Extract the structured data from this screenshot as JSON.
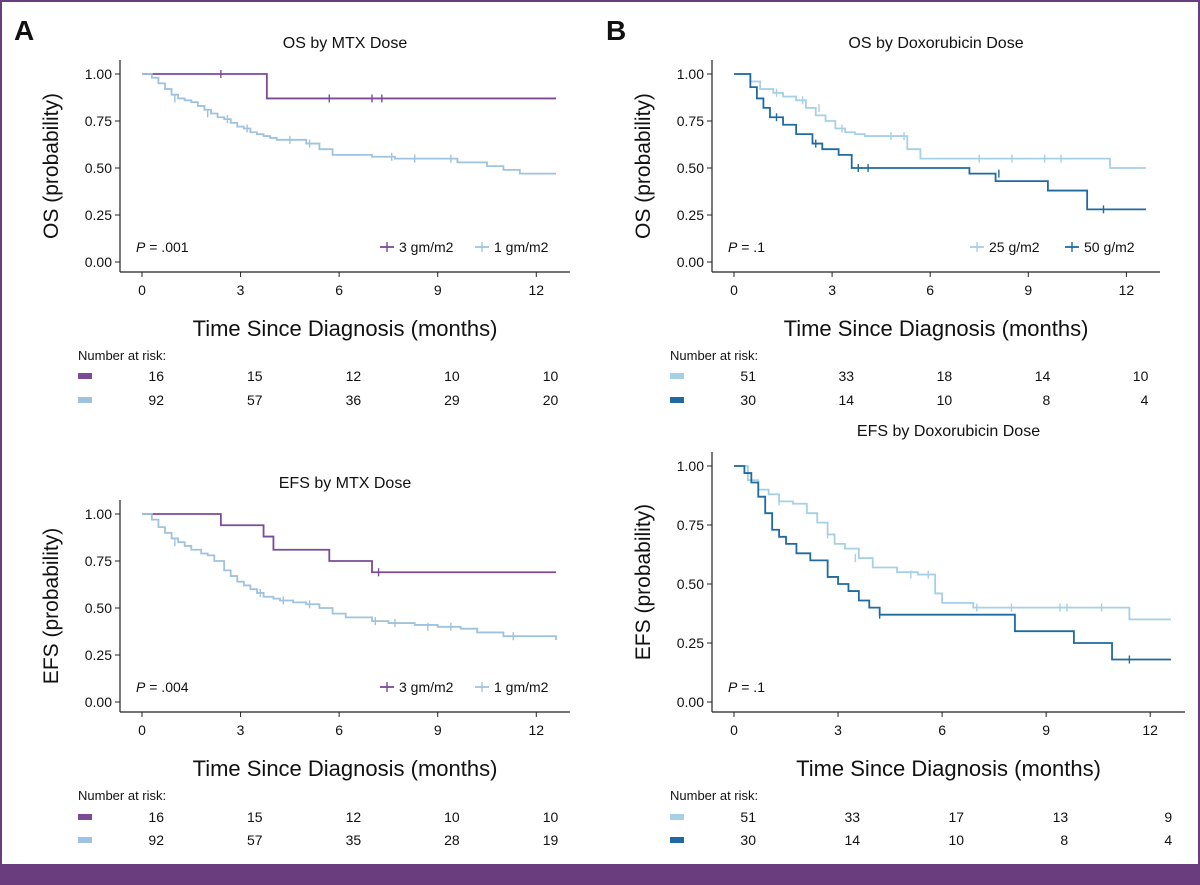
{
  "figure": {
    "panel_labels": [
      "A",
      "B"
    ],
    "colors": {
      "mtx_3gm": "#7b4a98",
      "mtx_1gm": "#9fc3de",
      "dox_25": "#a6d0e6",
      "dox_50": "#1f6aa0",
      "frame": "#6a3d7e"
    }
  },
  "chart_data": [
    {
      "id": "os-mtx",
      "type": "line",
      "step": "post",
      "title": "OS by MTX Dose",
      "xlabel": "Time Since Diagnosis (months)",
      "ylabel": "OS (probability)",
      "xlim": [
        0,
        12.6
      ],
      "ylim": [
        0,
        1
      ],
      "xticks": [
        "0",
        "3",
        "6",
        "9",
        "12"
      ],
      "yticks": [
        "0.00",
        "0.25",
        "0.50",
        "0.75",
        "1.00"
      ],
      "pvalue": ".001",
      "legend_position": "bottom-right",
      "series": [
        {
          "name": "3 gm/m2",
          "color": "#7b4a98",
          "x": [
            0,
            3.8,
            12.6
          ],
          "y": [
            1.0,
            0.87,
            0.87
          ],
          "censor_x": [
            2.4,
            5.7,
            7.0,
            7.3
          ],
          "censor_y": [
            1.0,
            0.87,
            0.87,
            0.87
          ]
        },
        {
          "name": "1 gm/m2",
          "color": "#9fc3de",
          "x": [
            0,
            0.3,
            0.5,
            0.7,
            0.9,
            1.1,
            1.3,
            1.5,
            1.7,
            1.9,
            2.1,
            2.3,
            2.5,
            2.7,
            2.9,
            3.1,
            3.3,
            3.5,
            3.7,
            3.9,
            4.1,
            4.4,
            5.0,
            5.4,
            5.8,
            7.0,
            7.7,
            8.6,
            9.6,
            10.5,
            11.0,
            11.5,
            12.6
          ],
          "y": [
            1.0,
            0.98,
            0.95,
            0.92,
            0.89,
            0.87,
            0.86,
            0.85,
            0.83,
            0.81,
            0.79,
            0.77,
            0.76,
            0.74,
            0.72,
            0.71,
            0.69,
            0.68,
            0.67,
            0.66,
            0.65,
            0.65,
            0.63,
            0.6,
            0.57,
            0.56,
            0.55,
            0.55,
            0.53,
            0.51,
            0.49,
            0.47,
            0.47
          ],
          "censor_x": [
            1.0,
            2.0,
            2.6,
            3.2,
            4.5,
            5.1,
            7.6,
            8.3,
            9.4
          ],
          "censor_y": [
            0.87,
            0.79,
            0.76,
            0.71,
            0.65,
            0.63,
            0.56,
            0.55,
            0.55
          ]
        }
      ],
      "risk_table": {
        "label": "Number at risk:",
        "rows": [
          {
            "color": "#7b4a98",
            "values": [
              "16",
              "15",
              "12",
              "10",
              "10"
            ]
          },
          {
            "color": "#9fc3de",
            "values": [
              "92",
              "57",
              "36",
              "29",
              "20"
            ]
          }
        ]
      }
    },
    {
      "id": "efs-mtx",
      "type": "line",
      "step": "post",
      "title": "EFS by MTX Dose",
      "xlabel": "Time Since Diagnosis (months)",
      "ylabel": "EFS (probability)",
      "xlim": [
        0,
        12.6
      ],
      "ylim": [
        0,
        1
      ],
      "xticks": [
        "0",
        "3",
        "6",
        "9",
        "12"
      ],
      "yticks": [
        "0.00",
        "0.25",
        "0.50",
        "0.75",
        "1.00"
      ],
      "pvalue": ".004",
      "legend_position": "bottom-right",
      "series": [
        {
          "name": "3 gm/m2",
          "color": "#7b4a98",
          "x": [
            0,
            2.4,
            3.7,
            4.0,
            5.7,
            7.0,
            12.6
          ],
          "y": [
            1.0,
            0.94,
            0.88,
            0.81,
            0.75,
            0.69,
            0.69
          ],
          "censor_x": [
            7.2
          ],
          "censor_y": [
            0.69
          ]
        },
        {
          "name": "1 gm/m2",
          "color": "#9fc3de",
          "x": [
            0,
            0.3,
            0.5,
            0.7,
            0.9,
            1.1,
            1.3,
            1.5,
            1.8,
            2.0,
            2.2,
            2.5,
            2.7,
            2.9,
            3.1,
            3.3,
            3.5,
            3.7,
            4.0,
            4.2,
            4.6,
            5.0,
            5.4,
            5.8,
            6.2,
            7.0,
            7.5,
            8.3,
            9.0,
            9.7,
            10.2,
            11.0,
            12.6
          ],
          "y": [
            1.0,
            0.97,
            0.93,
            0.9,
            0.87,
            0.85,
            0.83,
            0.81,
            0.79,
            0.78,
            0.75,
            0.7,
            0.67,
            0.64,
            0.62,
            0.6,
            0.58,
            0.56,
            0.55,
            0.54,
            0.53,
            0.52,
            0.5,
            0.47,
            0.45,
            0.43,
            0.42,
            0.41,
            0.4,
            0.39,
            0.37,
            0.35,
            0.33
          ],
          "censor_x": [
            1.0,
            3.6,
            4.3,
            5.1,
            7.1,
            7.7,
            8.7,
            9.4,
            11.3
          ],
          "censor_y": [
            0.85,
            0.58,
            0.54,
            0.52,
            0.43,
            0.42,
            0.4,
            0.4,
            0.35
          ]
        }
      ],
      "risk_table": {
        "label": "Number at risk:",
        "rows": [
          {
            "color": "#7b4a98",
            "values": [
              "16",
              "15",
              "12",
              "10",
              "10"
            ]
          },
          {
            "color": "#9fc3de",
            "values": [
              "92",
              "57",
              "35",
              "28",
              "19"
            ]
          }
        ]
      }
    },
    {
      "id": "os-dox",
      "type": "line",
      "step": "post",
      "title": "OS by Doxorubicin Dose",
      "xlabel": "Time Since Diagnosis (months)",
      "ylabel": "OS (probability)",
      "xlim": [
        0,
        12.6
      ],
      "ylim": [
        0,
        1
      ],
      "xticks": [
        "0",
        "3",
        "6",
        "9",
        "12"
      ],
      "yticks": [
        "0.00",
        "0.25",
        "0.50",
        "0.75",
        "1.00"
      ],
      "pvalue": ".1",
      "legend_position": "bottom-right",
      "series": [
        {
          "name": "25 g/m2",
          "color": "#a6d0e6",
          "x": [
            0,
            0.5,
            0.8,
            1.2,
            1.5,
            1.9,
            2.2,
            2.5,
            2.8,
            3.1,
            3.4,
            3.7,
            4.0,
            5.3,
            5.7,
            6.0,
            11.5,
            12.6
          ],
          "y": [
            1.0,
            0.96,
            0.92,
            0.9,
            0.88,
            0.86,
            0.82,
            0.78,
            0.75,
            0.71,
            0.69,
            0.68,
            0.67,
            0.6,
            0.55,
            0.55,
            0.5,
            0.5
          ],
          "censor_x": [
            1.3,
            2.1,
            2.6,
            3.3,
            4.8,
            5.2,
            7.5,
            8.5,
            9.5,
            10.0
          ],
          "censor_y": [
            0.9,
            0.86,
            0.82,
            0.71,
            0.67,
            0.67,
            0.55,
            0.55,
            0.55,
            0.55
          ]
        },
        {
          "name": "50 g/m2",
          "color": "#1f6aa0",
          "x": [
            0,
            0.5,
            0.7,
            0.9,
            1.1,
            1.5,
            1.9,
            2.4,
            2.7,
            3.2,
            3.6,
            7.2,
            8.0,
            9.6,
            10.8,
            12.6
          ],
          "y": [
            1.0,
            0.93,
            0.87,
            0.82,
            0.77,
            0.73,
            0.68,
            0.63,
            0.6,
            0.57,
            0.5,
            0.47,
            0.43,
            0.38,
            0.28,
            0.28
          ],
          "censor_x": [
            1.3,
            2.5,
            3.8,
            4.1,
            8.1,
            11.3
          ],
          "censor_y": [
            0.77,
            0.63,
            0.5,
            0.5,
            0.47,
            0.28
          ]
        }
      ],
      "risk_table": {
        "label": "Number at risk:",
        "rows": [
          {
            "color": "#a6d0e6",
            "values": [
              "51",
              "33",
              "18",
              "14",
              "10"
            ]
          },
          {
            "color": "#1f6aa0",
            "values": [
              "30",
              "14",
              "10",
              "8",
              "4"
            ]
          }
        ]
      }
    },
    {
      "id": "efs-dox",
      "type": "line",
      "step": "post",
      "title": "EFS by Doxorubicin Dose",
      "xlabel": "Time Since Diagnosis (months)",
      "ylabel": "EFS (probability)",
      "xlim": [
        0,
        12.6
      ],
      "ylim": [
        0,
        1
      ],
      "xticks": [
        "0",
        "3",
        "6",
        "9",
        "12"
      ],
      "yticks": [
        "0.00",
        "0.25",
        "0.50",
        "0.75",
        "1.00"
      ],
      "pvalue": ".1",
      "legend_position": "none",
      "series": [
        {
          "name": "25 g/m2",
          "color": "#a6d0e6",
          "x": [
            0,
            0.4,
            0.7,
            1.0,
            1.3,
            1.7,
            2.1,
            2.4,
            2.7,
            2.9,
            3.2,
            3.6,
            4.0,
            4.7,
            5.3,
            5.8,
            6.0,
            6.9,
            8.0,
            11.4,
            12.6
          ],
          "y": [
            1.0,
            0.94,
            0.9,
            0.88,
            0.85,
            0.84,
            0.8,
            0.76,
            0.71,
            0.67,
            0.65,
            0.61,
            0.57,
            0.55,
            0.54,
            0.46,
            0.42,
            0.4,
            0.4,
            0.35,
            0.35
          ],
          "censor_x": [
            1.3,
            2.7,
            3.5,
            5.1,
            5.6,
            7.0,
            8.0,
            9.4,
            9.6,
            10.6
          ],
          "censor_y": [
            0.85,
            0.71,
            0.61,
            0.54,
            0.54,
            0.4,
            0.4,
            0.4,
            0.4,
            0.4
          ]
        },
        {
          "name": "50 g/m2",
          "color": "#1f6aa0",
          "x": [
            0,
            0.3,
            0.5,
            0.7,
            0.9,
            1.1,
            1.3,
            1.5,
            1.8,
            2.2,
            2.7,
            3.0,
            3.3,
            3.6,
            3.9,
            4.2,
            4.5,
            8.1,
            9.8,
            10.9,
            12.6
          ],
          "y": [
            1.0,
            0.97,
            0.93,
            0.87,
            0.8,
            0.73,
            0.7,
            0.67,
            0.63,
            0.6,
            0.53,
            0.5,
            0.47,
            0.43,
            0.4,
            0.37,
            0.37,
            0.3,
            0.25,
            0.18,
            0.18
          ],
          "censor_x": [
            4.2,
            11.4
          ],
          "censor_y": [
            0.37,
            0.18
          ]
        }
      ],
      "risk_table": {
        "label": "Number at risk:",
        "rows": [
          {
            "color": "#a6d0e6",
            "values": [
              "51",
              "33",
              "17",
              "13",
              "9"
            ]
          },
          {
            "color": "#1f6aa0",
            "values": [
              "30",
              "14",
              "10",
              "8",
              "4"
            ]
          }
        ]
      }
    }
  ]
}
